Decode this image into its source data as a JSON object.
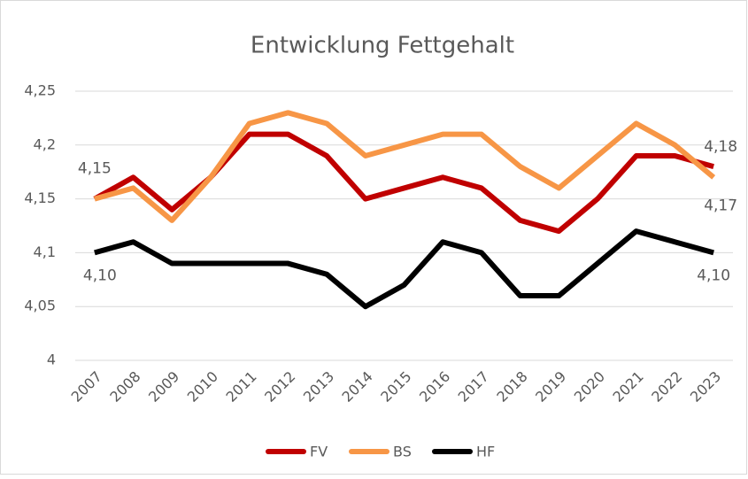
{
  "chart_data": {
    "type": "line",
    "title": "Entwicklung Fettgehalt",
    "categories": [
      "2007",
      "2008",
      "2009",
      "2010",
      "2011",
      "2012",
      "2013",
      "2014",
      "2015",
      "2016",
      "2017",
      "2018",
      "2019",
      "2020",
      "2021",
      "2022",
      "2023"
    ],
    "series": [
      {
        "name": "FV",
        "color": "#c00000",
        "values": [
          4.15,
          4.17,
          4.14,
          4.17,
          4.21,
          4.21,
          4.19,
          4.15,
          4.16,
          4.17,
          4.16,
          4.13,
          4.12,
          4.15,
          4.19,
          4.19,
          4.18
        ],
        "value_labels": [
          "4,15",
          null,
          null,
          null,
          null,
          null,
          null,
          null,
          null,
          null,
          null,
          null,
          null,
          null,
          null,
          null,
          "4,18"
        ]
      },
      {
        "name": "BS",
        "color": "#f79646",
        "values": [
          4.15,
          4.16,
          4.13,
          4.17,
          4.22,
          4.23,
          4.22,
          4.19,
          4.2,
          4.21,
          4.21,
          4.18,
          4.16,
          4.19,
          4.22,
          4.2,
          4.17
        ],
        "value_labels": [
          null,
          null,
          null,
          null,
          null,
          null,
          null,
          null,
          null,
          null,
          null,
          null,
          null,
          null,
          null,
          null,
          "4,17"
        ]
      },
      {
        "name": "HF",
        "color": "#000000",
        "values": [
          4.1,
          4.11,
          4.09,
          4.09,
          4.09,
          4.09,
          4.08,
          4.05,
          4.07,
          4.11,
          4.1,
          4.06,
          4.06,
          4.09,
          4.12,
          4.11,
          4.1
        ],
        "value_labels": [
          "4,10",
          null,
          null,
          null,
          null,
          null,
          null,
          null,
          null,
          null,
          null,
          null,
          null,
          null,
          null,
          null,
          "4,10"
        ]
      }
    ],
    "ylim": [
      4,
      4.25
    ],
    "yticks": [
      4,
      {
        "value": 4.05,
        "label": "4,05"
      },
      {
        "value": 4.1,
        "label": "4,1"
      },
      {
        "value": 4.15,
        "label": "4,15"
      },
      {
        "value": 4.2,
        "label": "4,2"
      },
      {
        "value": 4.25,
        "label": "4,25"
      }
    ],
    "grid": true,
    "legend": "bottom"
  }
}
